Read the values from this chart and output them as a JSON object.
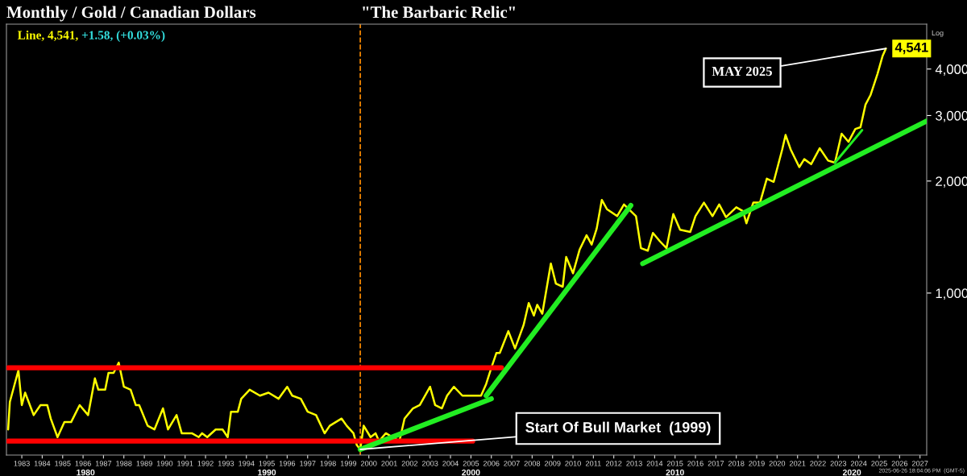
{
  "chart_data": {
    "type": "line",
    "title": "Monthly / Gold / Canadian Dollars",
    "subtitle": "\"The Barbaric Relic\"",
    "log": "y",
    "xlim": [
      "1982-04",
      "2027-05"
    ],
    "ylim": [
      367,
      5280
    ],
    "xticks": [
      "1983",
      "1984",
      "1985",
      "1986",
      "1987",
      "1988",
      "1989",
      "1990",
      "1991",
      "1992",
      "1993",
      "1994",
      "1995",
      "1996",
      "1997",
      "1998",
      "1999",
      "2000",
      "2001",
      "2002",
      "2003",
      "2004",
      "2005",
      "2006",
      "2007",
      "2008",
      "2009",
      "2010",
      "2011",
      "2012",
      "2013",
      "2014",
      "2015",
      "2016",
      "2017",
      "2018",
      "2019",
      "2020",
      "2021",
      "2022",
      "2023",
      "2024",
      "2025",
      "2026",
      "2027"
    ],
    "yticks": [
      {
        "value": 1000,
        "label": "1,000"
      },
      {
        "value": 2000,
        "label": "2,000"
      },
      {
        "value": 3000,
        "label": "3,000"
      },
      {
        "value": 4000,
        "label": "4,000"
      }
    ],
    "marker": "none",
    "line_style": "solid",
    "series": [
      {
        "color": "#ffff00",
        "x": [
          "1982-05",
          "1982-06",
          "1982-11",
          "1983-01",
          "1983-03",
          "1983-08",
          "1983-12",
          "1984-04",
          "1984-06",
          "1984-10",
          "1985-02",
          "1985-06",
          "1985-11",
          "1986-04",
          "1986-08",
          "1986-10",
          "1987-02",
          "1987-04",
          "1987-07",
          "1987-10",
          "1988-01",
          "1988-05",
          "1988-08",
          "1988-10",
          "1989-03",
          "1989-07",
          "1989-12",
          "1990-03",
          "1990-08",
          "1990-11",
          "1991-05",
          "1991-09",
          "1991-11",
          "1992-02",
          "1992-07",
          "1992-11",
          "1993-02",
          "1993-04",
          "1993-08",
          "1993-10",
          "1994-03",
          "1994-09",
          "1995-02",
          "1995-08",
          "1996-01",
          "1996-04",
          "1996-09",
          "1997-01",
          "1997-06",
          "1997-11",
          "1998-02",
          "1998-09",
          "1998-12",
          "1999-04",
          "1999-06",
          "1999-08",
          "1999-10",
          "2000-02",
          "2000-05",
          "2000-07",
          "2000-11",
          "2001-03",
          "2001-07",
          "2001-10",
          "2002-03",
          "2002-07",
          "2003-01",
          "2003-04",
          "2003-08",
          "2003-11",
          "2004-03",
          "2004-08",
          "2005-02",
          "2005-07",
          "2005-10",
          "2006-01",
          "2006-04",
          "2006-06",
          "2006-11",
          "2007-03",
          "2007-08",
          "2007-11",
          "2008-02",
          "2008-04",
          "2008-07",
          "2008-12",
          "2009-03",
          "2009-07",
          "2009-09",
          "2010-01",
          "2010-05",
          "2010-09",
          "2010-12",
          "2011-03",
          "2011-06",
          "2011-09",
          "2012-03",
          "2012-07",
          "2013-02",
          "2013-05",
          "2013-09",
          "2013-12",
          "2014-04",
          "2014-08",
          "2014-12",
          "2015-04",
          "2015-10",
          "2016-01",
          "2016-06",
          "2016-11",
          "2017-03",
          "2017-07",
          "2018-01",
          "2018-05",
          "2018-07",
          "2018-11",
          "2019-03",
          "2019-07",
          "2019-11",
          "2020-04",
          "2020-06",
          "2020-09",
          "2021-02",
          "2021-05",
          "2021-09",
          "2022-02",
          "2022-07",
          "2022-11",
          "2023-03",
          "2023-07",
          "2023-11",
          "2024-02",
          "2024-05",
          "2024-08",
          "2024-12",
          "2025-03",
          "2025-05"
        ],
        "values": [
          430,
          510,
          620,
          500,
          540,
          470,
          500,
          500,
          460,
          410,
          450,
          450,
          500,
          470,
          590,
          550,
          550,
          610,
          610,
          650,
          560,
          550,
          500,
          500,
          440,
          430,
          490,
          430,
          470,
          420,
          420,
          410,
          420,
          410,
          430,
          430,
          410,
          480,
          480,
          520,
          550,
          530,
          540,
          520,
          560,
          530,
          520,
          480,
          470,
          420,
          440,
          460,
          440,
          420,
          390,
          380,
          440,
          410,
          420,
          400,
          420,
          410,
          400,
          460,
          490,
          500,
          560,
          500,
          490,
          530,
          560,
          530,
          530,
          530,
          570,
          630,
          690,
          690,
          790,
          710,
          820,
          940,
          870,
          930,
          880,
          1200,
          1060,
          1040,
          1250,
          1130,
          1310,
          1430,
          1350,
          1490,
          1780,
          1680,
          1610,
          1730,
          1610,
          1320,
          1300,
          1450,
          1380,
          1320,
          1630,
          1480,
          1460,
          1610,
          1750,
          1610,
          1730,
          1600,
          1700,
          1660,
          1540,
          1750,
          1750,
          2030,
          1990,
          2430,
          2660,
          2430,
          2180,
          2290,
          2220,
          2450,
          2270,
          2240,
          2680,
          2550,
          2760,
          2790,
          3210,
          3410,
          3880,
          4330,
          4541
        ],
        "value_labels": [
          null,
          null,
          null,
          null,
          null,
          null,
          null,
          null,
          null,
          null,
          null,
          null,
          null,
          null,
          null,
          null,
          null,
          null,
          null,
          null,
          null,
          null,
          null,
          null,
          null,
          null,
          null,
          null,
          null,
          null,
          null,
          null,
          null,
          null,
          null,
          null,
          null,
          null,
          null,
          null,
          null,
          null,
          null,
          null,
          null,
          null,
          null,
          null,
          null,
          null,
          null,
          null,
          null,
          null,
          null,
          null,
          null,
          null,
          null,
          null,
          null,
          null,
          null,
          null,
          null,
          null,
          null,
          null,
          null,
          null,
          null,
          null,
          null,
          null,
          null,
          null,
          null,
          null,
          null,
          null,
          null,
          null,
          null,
          null,
          null,
          null,
          null,
          null,
          null,
          null,
          null,
          null,
          null,
          null,
          null,
          null,
          null,
          null,
          null,
          null,
          null,
          null,
          null,
          null,
          null,
          null,
          null,
          null,
          null,
          null,
          null,
          null,
          null,
          null,
          null,
          null,
          null,
          null,
          null,
          null,
          null,
          null,
          null,
          null,
          null,
          null,
          null,
          null,
          null,
          null,
          null,
          null,
          null,
          null,
          null,
          null,
          "4,541"
        ]
      },
      {
        "color": "#ff0000",
        "x": [
          "1982-05",
          "2006-07"
        ],
        "values": [
          630,
          630
        ]
      },
      {
        "color": "#ff0000",
        "x": [
          "1982-05",
          "2005-02"
        ],
        "values": [
          400,
          400
        ]
      },
      {
        "color": "#22ee22",
        "x": [
          "1999-08",
          "2006-01"
        ],
        "values": [
          380,
          520
        ]
      },
      {
        "color": "#22ee22",
        "x": [
          "2005-10",
          "2012-11"
        ],
        "values": [
          530,
          1720
        ]
      },
      {
        "color": "#22ee22",
        "x": [
          "2013-06",
          "2027-05"
        ],
        "values": [
          1200,
          2900
        ]
      },
      {
        "color": "#22ee22",
        "x": [
          "2022-11",
          "2024-03"
        ],
        "values": [
          2240,
          2740
        ]
      }
    ],
    "ref_lines": [
      {
        "axis": "x",
        "value": "1999-08",
        "color": "#ff8c00",
        "line_style": "dashed"
      }
    ],
    "annotations": [
      "Line, 4,541,",
      "+1.58, (+0.03%)",
      "Log",
      "2025-06-26 18:04:06 PM  (GMT-5)",
      {
        "text": "Start Of Bull Market  (1999)",
        "x": "1999-08",
        "y": 380
      },
      {
        "text": "MAY 2025",
        "x": "2025-05",
        "y": 4541
      },
      "1980",
      "1990",
      "2000",
      "2010",
      "2020"
    ],
    "grid": false,
    "legend": false
  }
}
